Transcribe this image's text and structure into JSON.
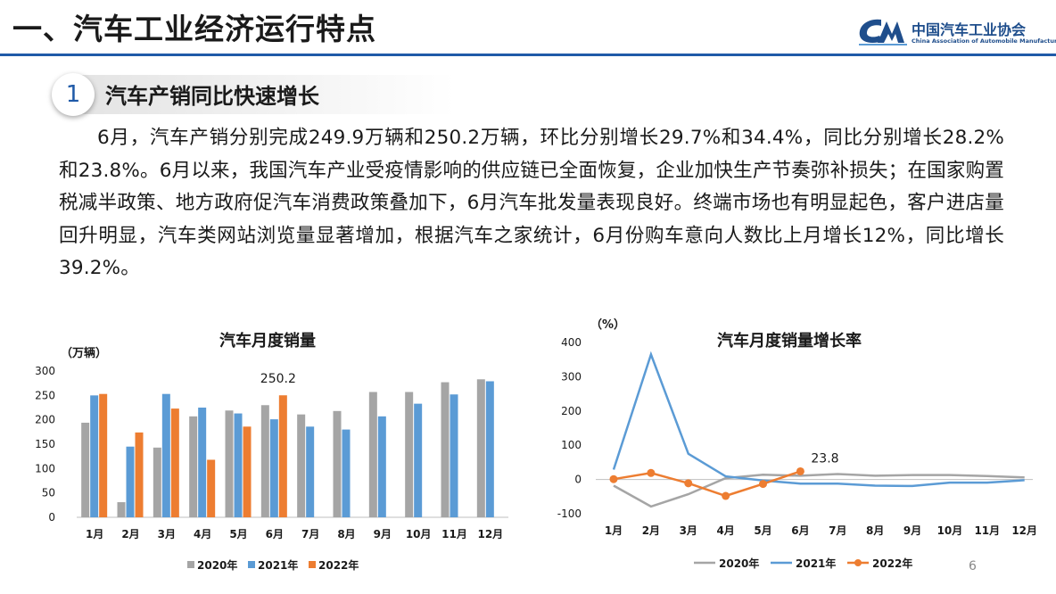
{
  "header": {
    "title": "一、汽车工业经济运行特点"
  },
  "logo": {
    "name_cn": "中国汽车工业协会",
    "name_en": "China Association of Automobile Manufacturers"
  },
  "section": {
    "number": "1",
    "title": "汽车产销同比快速增长"
  },
  "paragraph": "6月，汽车产销分别完成249.9万辆和250.2万辆，环比分别增长29.7%和34.4%，同比分别增长28.2%和23.8%。6月以来，我国汽车产业受疫情影响的供应链已全面恢复，企业加快生产节奏弥补损失；在国家购置税减半政策、地方政府促汽车消费政策叠加下，6月汽车批发量表现良好。终端市场也有明显起色，客户进店量回升明显，汽车类网站浏览量显著增加，根据汽车之家统计，6月份购车意向人数比上月增长12%，同比增长39.2%。",
  "page_number": "6",
  "colors": {
    "s2020": "#a5a5a5",
    "s2021": "#5b9bd5",
    "s2022": "#ed7d31",
    "header_line": "#1f5aa8"
  },
  "chart_data": [
    {
      "type": "bar",
      "title": "汽车月度销量",
      "ylabel": "（万辆）",
      "ylim": [
        0,
        300
      ],
      "yticks": [
        0,
        50,
        100,
        150,
        200,
        250,
        300
      ],
      "categories": [
        "1月",
        "2月",
        "3月",
        "4月",
        "5月",
        "6月",
        "7月",
        "8月",
        "9月",
        "10月",
        "11月",
        "12月"
      ],
      "series": [
        {
          "name": "2020年",
          "values": [
            194,
            31,
            143,
            207,
            219,
            230,
            211,
            218,
            257,
            257,
            277,
            283
          ]
        },
        {
          "name": "2021年",
          "values": [
            250,
            145,
            253,
            225,
            213,
            201,
            186,
            180,
            207,
            233,
            252,
            279
          ]
        },
        {
          "name": "2022年",
          "values": [
            253,
            174,
            223,
            118,
            186,
            250.2,
            null,
            null,
            null,
            null,
            null,
            null
          ]
        }
      ],
      "annotation": {
        "label": "250.2",
        "series": "2022年",
        "category": "6月"
      },
      "legend": "bottom"
    },
    {
      "type": "line",
      "title": "汽车月度销量增长率",
      "ylabel": "（%）",
      "ylim": [
        -100,
        400
      ],
      "yticks": [
        -100,
        0,
        100,
        200,
        300,
        400
      ],
      "categories": [
        "1月",
        "2月",
        "3月",
        "4月",
        "5月",
        "6月",
        "7月",
        "8月",
        "9月",
        "10月",
        "11月",
        "12月"
      ],
      "series": [
        {
          "name": "2020年",
          "values": [
            -18,
            -79,
            -43,
            4,
            14,
            11,
            16,
            11,
            13,
            13,
            10,
            6
          ]
        },
        {
          "name": "2021年",
          "values": [
            29,
            365,
            75,
            9,
            -3,
            -12,
            -12,
            -18,
            -19,
            -9,
            -9,
            -2
          ]
        },
        {
          "name": "2022年",
          "values": [
            1,
            19,
            -11,
            -48,
            -13,
            23.8,
            null,
            null,
            null,
            null,
            null,
            null
          ]
        }
      ],
      "annotation": {
        "label": "23.8",
        "series": "2022年",
        "category": "6月"
      },
      "legend": "bottom"
    }
  ]
}
